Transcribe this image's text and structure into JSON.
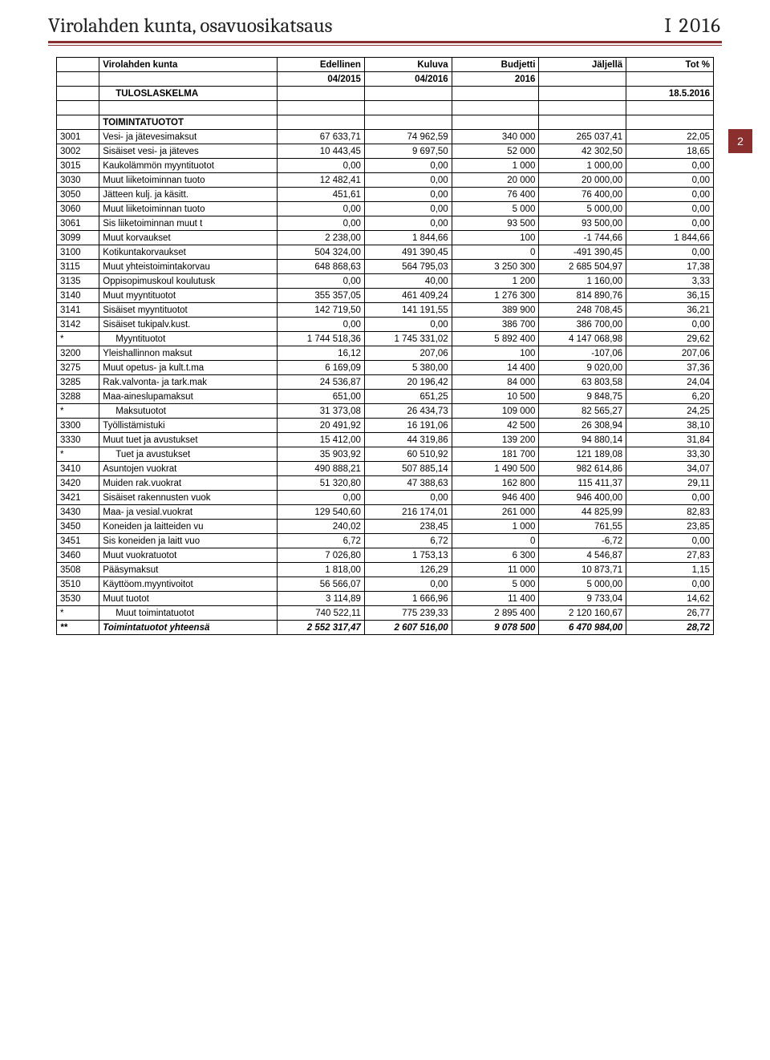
{
  "header": {
    "title_left": "Virolahden kunta, osavuosikatsaus",
    "title_right": "I  2016",
    "page_number": "2"
  },
  "table": {
    "top": {
      "entity": "Virolahden kunta",
      "c1": "Edellinen",
      "c2": "Kuluva",
      "c3": "Budjetti",
      "c4": "Jäljellä",
      "c5": "Tot %",
      "sub1": "04/2015",
      "sub2": "04/2016",
      "sub3": "2016",
      "report_label": "TULOSLASKELMA",
      "report_date": "18.5.2016"
    },
    "section": "TOIMINTATUOTOT",
    "rows": [
      {
        "code": "3001",
        "desc": "Vesi- ja jätevesimaksut",
        "v": [
          "67 633,71",
          "74 962,59",
          "340 000",
          "265 037,41",
          "22,05"
        ]
      },
      {
        "code": "3002",
        "desc": "Sisäiset vesi- ja jäteves",
        "v": [
          "10 443,45",
          "9 697,50",
          "52 000",
          "42 302,50",
          "18,65"
        ]
      },
      {
        "code": "3015",
        "desc": "Kaukolämmön myyntituotot",
        "v": [
          "0,00",
          "0,00",
          "1 000",
          "1 000,00",
          "0,00"
        ]
      },
      {
        "code": "3030",
        "desc": "Muut liiketoiminnan tuoto",
        "v": [
          "12 482,41",
          "0,00",
          "20 000",
          "20 000,00",
          "0,00"
        ]
      },
      {
        "code": "3050",
        "desc": "Jätteen kulj. ja käsitt.",
        "v": [
          "451,61",
          "0,00",
          "76 400",
          "76 400,00",
          "0,00"
        ]
      },
      {
        "code": "3060",
        "desc": "Muut liiketoiminnan tuoto",
        "v": [
          "0,00",
          "0,00",
          "5 000",
          "5 000,00",
          "0,00"
        ]
      },
      {
        "code": "3061",
        "desc": "Sis liiketoiminnan muut t",
        "v": [
          "0,00",
          "0,00",
          "93 500",
          "93 500,00",
          "0,00"
        ]
      },
      {
        "code": "3099",
        "desc": "Muut korvaukset",
        "v": [
          "2 238,00",
          "1 844,66",
          "100",
          "-1 744,66",
          "1 844,66"
        ]
      },
      {
        "code": "3100",
        "desc": "Kotikuntakorvaukset",
        "v": [
          "504 324,00",
          "491 390,45",
          "0",
          "-491 390,45",
          "0,00"
        ]
      },
      {
        "code": "3115",
        "desc": "Muut yhteistoimintakorvau",
        "v": [
          "648 868,63",
          "564 795,03",
          "3 250 300",
          "2 685 504,97",
          "17,38"
        ]
      },
      {
        "code": "3135",
        "desc": "Oppisopimuskoul koulutusk",
        "v": [
          "0,00",
          "40,00",
          "1 200",
          "1 160,00",
          "3,33"
        ]
      },
      {
        "code": "3140",
        "desc": "Muut myyntituotot",
        "v": [
          "355 357,05",
          "461 409,24",
          "1 276 300",
          "814 890,76",
          "36,15"
        ]
      },
      {
        "code": "3141",
        "desc": "Sisäiset myyntituotot",
        "v": [
          "142 719,50",
          "141 191,55",
          "389 900",
          "248 708,45",
          "36,21"
        ]
      },
      {
        "code": "3142",
        "desc": "Sisäiset tukipalv.kust.",
        "v": [
          "0,00",
          "0,00",
          "386 700",
          "386 700,00",
          "0,00"
        ]
      },
      {
        "code": "*",
        "desc": "Myyntituotot",
        "indent": true,
        "v": [
          "1 744 518,36",
          "1 745 331,02",
          "5 892 400",
          "4 147 068,98",
          "29,62"
        ]
      },
      {
        "code": "3200",
        "desc": "Yleishallinnon maksut",
        "v": [
          "16,12",
          "207,06",
          "100",
          "-107,06",
          "207,06"
        ]
      },
      {
        "code": "3275",
        "desc": "Muut opetus- ja kult.t.ma",
        "v": [
          "6 169,09",
          "5 380,00",
          "14 400",
          "9 020,00",
          "37,36"
        ]
      },
      {
        "code": "3285",
        "desc": "Rak.valvonta- ja tark.mak",
        "v": [
          "24 536,87",
          "20 196,42",
          "84 000",
          "63 803,58",
          "24,04"
        ]
      },
      {
        "code": "3288",
        "desc": "Maa-aineslupamaksut",
        "v": [
          "651,00",
          "651,25",
          "10 500",
          "9 848,75",
          "6,20"
        ]
      },
      {
        "code": "*",
        "desc": "Maksutuotot",
        "indent": true,
        "v": [
          "31 373,08",
          "26 434,73",
          "109 000",
          "82 565,27",
          "24,25"
        ]
      },
      {
        "code": "3300",
        "desc": "Työllistämistuki",
        "v": [
          "20 491,92",
          "16 191,06",
          "42 500",
          "26 308,94",
          "38,10"
        ]
      },
      {
        "code": "3330",
        "desc": "Muut tuet ja avustukset",
        "v": [
          "15 412,00",
          "44 319,86",
          "139 200",
          "94 880,14",
          "31,84"
        ]
      },
      {
        "code": "*",
        "desc": "Tuet ja avustukset",
        "indent": true,
        "v": [
          "35 903,92",
          "60 510,92",
          "181 700",
          "121 189,08",
          "33,30"
        ]
      },
      {
        "code": "3410",
        "desc": "Asuntojen vuokrat",
        "v": [
          "490 888,21",
          "507 885,14",
          "1 490 500",
          "982 614,86",
          "34,07"
        ]
      },
      {
        "code": "3420",
        "desc": "Muiden rak.vuokrat",
        "v": [
          "51 320,80",
          "47 388,63",
          "162 800",
          "115 411,37",
          "29,11"
        ]
      },
      {
        "code": "3421",
        "desc": "Sisäiset rakennusten vuok",
        "v": [
          "0,00",
          "0,00",
          "946 400",
          "946 400,00",
          "0,00"
        ]
      },
      {
        "code": "3430",
        "desc": "Maa- ja vesial.vuokrat",
        "v": [
          "129 540,60",
          "216 174,01",
          "261 000",
          "44 825,99",
          "82,83"
        ]
      },
      {
        "code": "3450",
        "desc": "Koneiden ja laitteiden vu",
        "v": [
          "240,02",
          "238,45",
          "1 000",
          "761,55",
          "23,85"
        ]
      },
      {
        "code": "3451",
        "desc": "Sis koneiden ja laitt vuo",
        "v": [
          "6,72",
          "6,72",
          "0",
          "-6,72",
          "0,00"
        ]
      },
      {
        "code": "3460",
        "desc": "Muut vuokratuotot",
        "v": [
          "7 026,80",
          "1 753,13",
          "6 300",
          "4 546,87",
          "27,83"
        ]
      },
      {
        "code": "3508",
        "desc": "Pääsymaksut",
        "v": [
          "1 818,00",
          "126,29",
          "11 000",
          "10 873,71",
          "1,15"
        ]
      },
      {
        "code": "3510",
        "desc": "Käyttöom.myyntivoitot",
        "v": [
          "56 566,07",
          "0,00",
          "5 000",
          "5 000,00",
          "0,00"
        ]
      },
      {
        "code": "3530",
        "desc": "Muut tuotot",
        "v": [
          "3 114,89",
          "1 666,96",
          "11 400",
          "9 733,04",
          "14,62"
        ]
      },
      {
        "code": "*",
        "desc": "Muut toimintatuotot",
        "indent": true,
        "v": [
          "740 522,11",
          "775 239,33",
          "2 895 400",
          "2 120 160,67",
          "26,77"
        ]
      },
      {
        "code": "**",
        "desc": "Toimintatuotot yhteensä",
        "bolditalic": true,
        "v": [
          "2 552 317,47",
          "2 607 516,00",
          "9 078 500",
          "6 470 984,00",
          "28,72"
        ]
      }
    ]
  },
  "colors": {
    "accent": "#8b2e2e",
    "text": "#000000",
    "bg": "#ffffff"
  }
}
